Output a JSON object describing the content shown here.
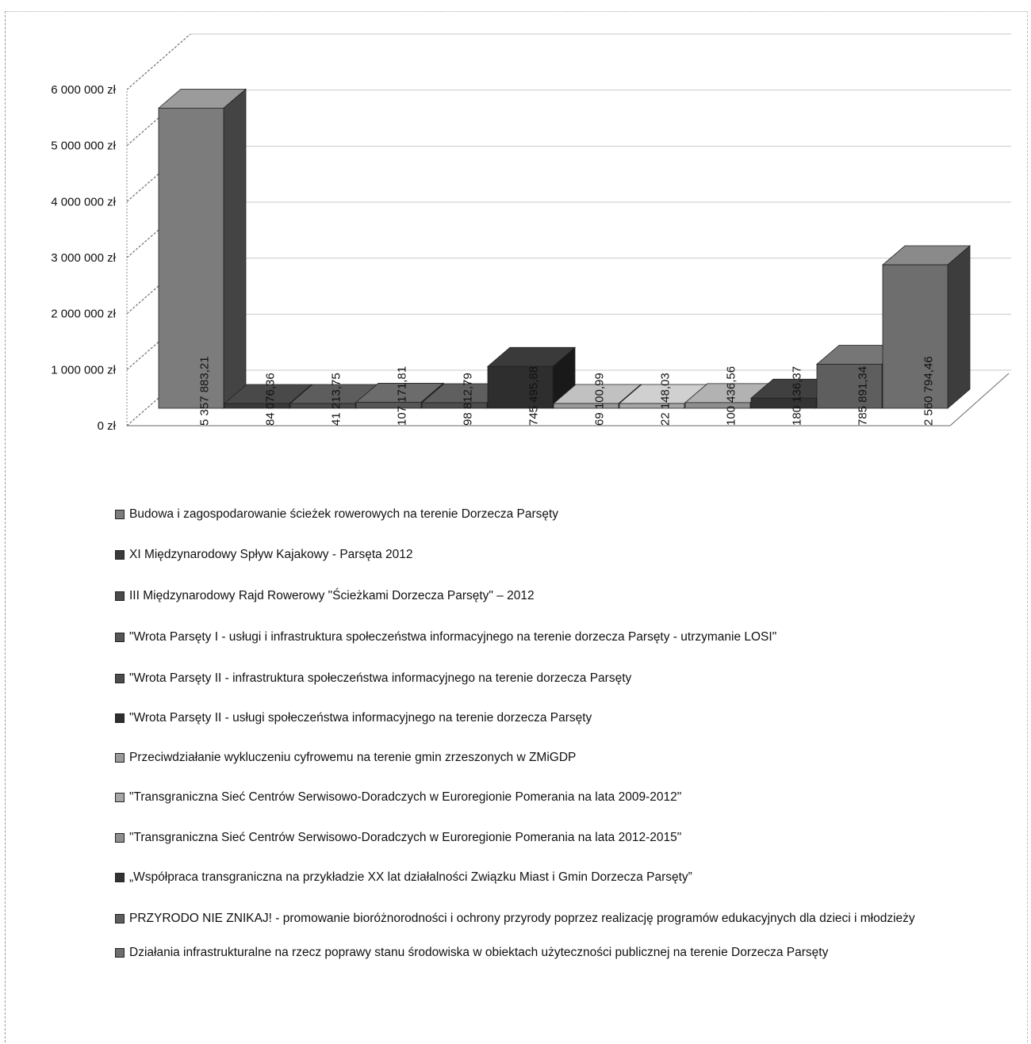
{
  "chart_data": {
    "type": "bar",
    "ylim": [
      0,
      6000000
    ],
    "yticks": [
      "0 zł",
      "1 000 000 zł",
      "2 000 000 zł",
      "3 000 000 zł",
      "4 000 000 zł",
      "5 000 000 zł",
      "6 000 000 zł"
    ],
    "ytick_values": [
      0,
      1000000,
      2000000,
      3000000,
      4000000,
      5000000,
      6000000
    ],
    "series": [
      {
        "name": "Budowa i zagospodarowanie ścieżek rowerowych na terenie Dorzecza Parsęty",
        "value": 5357883.21,
        "label": "5 357 883,21",
        "color": "#7c7c7c"
      },
      {
        "name": "XI Międzynarodowy Spływ Kajakowy - Parsęta 2012",
        "value": 84076.36,
        "label": "84 076,36",
        "color": "#3a3a3a"
      },
      {
        "name": "III Międzynarodowy Rajd Rowerowy \"Ścieżkami Dorzecza Parsęty\" – 2012",
        "value": 41213.75,
        "label": "41 213,75",
        "color": "#4a4a4a"
      },
      {
        "name": "\"Wrota Parsęty I - usługi i infrastruktura społeczeństwa informacyjnego na terenie dorzecza Parsęty - utrzymanie LOSI\"",
        "value": 107171.81,
        "label": "107 171,81",
        "color": "#565656"
      },
      {
        "name": "\"Wrota Parsęty II - infrastruktura społeczeństwa informacyjnego na terenie dorzecza Parsęty",
        "value": 98812.79,
        "label": "98 812,79",
        "color": "#4c4c4c"
      },
      {
        "name": "\"Wrota Parsęty II - usługi społeczeństwa informacyjnego na terenie dorzecza Parsęty",
        "value": 745495.88,
        "label": "745 495,88",
        "color": "#2e2e2e"
      },
      {
        "name": "Przeciwdziałanie wykluczeniu cyfrowemu na terenie gmin zrzeszonych w ZMiGDP",
        "value": 69100.99,
        "label": "69 100,99",
        "color": "#9a9a9a"
      },
      {
        "name": "\"Transgraniczna Sieć Centrów Serwisowo-Doradczych w Euroregionie Pomerania na lata 2009-2012\"",
        "value": 22148.03,
        "label": "22 148,03",
        "color": "#a6a6a6"
      },
      {
        "name": "\"Transgraniczna Sieć Centrów Serwisowo-Doradczych w Euroregionie Pomerania na lata 2012-2015\"",
        "value": 100436.56,
        "label": "100 436,56",
        "color": "#8e8e8e"
      },
      {
        "name": "„Współpraca transgraniczna na przykładzie XX lat działalności Związku Miast i Gmin Dorzecza Parsęty”",
        "value": 180136.37,
        "label": "180 136,37",
        "color": "#333333"
      },
      {
        "name": "PRZYRODO NIE ZNIKAJ! - promowanie bioróżnorodności i ochrony przyrody poprzez realizację programów edukacyjnych dla dzieci i młodzieży",
        "value": 785891.34,
        "label": "785 891,34",
        "color": "#5e5e5e"
      },
      {
        "name": "Działania infrastrukturalne na rzecz poprawy stanu środowiska w obiektach użyteczności publicznej na terenie Dorzecza Parsęty",
        "value": 2560794.46,
        "label": "2 560 794,46",
        "color": "#6e6e6e"
      }
    ],
    "legend_position": "bottom",
    "grid": true
  }
}
